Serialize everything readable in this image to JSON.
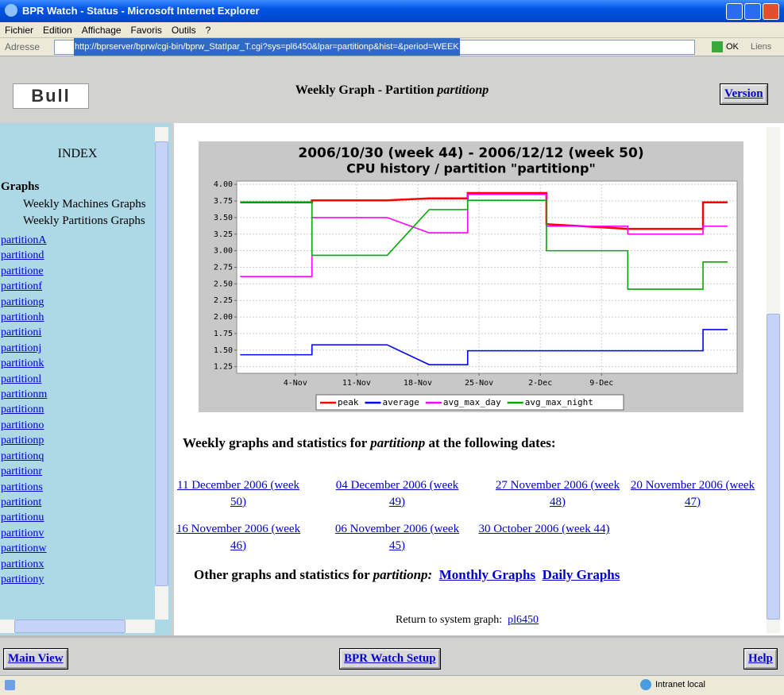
{
  "window": {
    "title": "BPR Watch - Status - Microsoft Internet Explorer",
    "menu": [
      "Fichier",
      "Edition",
      "Affichage",
      "Favoris",
      "Outils",
      "?"
    ],
    "address_label": "Adresse",
    "url": "http://bprserver/bprw/cgi-bin/bprw_StatIpar_T.cgi?sys=pl6450&lpar=partitionp&hist=&period=WEEK",
    "go": "OK",
    "links": "Liens"
  },
  "header": {
    "logo": "Bull",
    "title": "Weekly Graph - Partition ",
    "title_em": "partitionp",
    "version": "Version"
  },
  "index": {
    "title": "INDEX",
    "section": "Graphs",
    "items": [
      "Weekly Machines Graphs",
      "Weekly Partitions Graphs"
    ],
    "links": [
      "partitionA",
      "partitiond",
      "partitione",
      "partitionf",
      "partitiong",
      "partitionh",
      "partitioni",
      "partitionj",
      "partitionk",
      "partitionl",
      "partitionm",
      "partitionn",
      "partitiono",
      "partitionp",
      "partitionq",
      "partitionr",
      "partitions",
      "partitiont",
      "partitionu",
      "partitionv",
      "partitionw",
      "partitionx",
      "partitiony"
    ]
  },
  "content": {
    "heading": "Weekly graphs and statistics for ",
    "heading_em": "partitionp",
    "heading_end": " at the following dates:",
    "dates": [
      "11 December 2006 (week 50)",
      "04 December 2006 (week 49)",
      "27 November 2006 (week 48)",
      "20 November 2006 (week 47)",
      "16 November 2006 (week 46)",
      "06 November 2006 (week 45)",
      "30 October 2006 (week 44)"
    ],
    "other": "Other graphs and statistics for ",
    "other_em": "partitionp:",
    "monthly": "Monthly Graphs",
    "daily": "Daily Graphs",
    "return": "Return to system graph:",
    "system": "pl6450"
  },
  "footer": {
    "main": "Main View",
    "setup": "BPR Watch Setup",
    "help": "Help"
  },
  "status": {
    "zone": "Intranet local"
  },
  "chart_data": {
    "type": "line",
    "title": "2006/10/30 (week 44) - 2006/12/12 (week 50)",
    "subtitle": "CPU history / partition \"partitionp\"",
    "xlim": [
      -2.7,
      54.5
    ],
    "xticks": [
      {
        "value": 4,
        "label": "4-Nov"
      },
      {
        "value": 11,
        "label": "11-Nov"
      },
      {
        "value": 18,
        "label": "18-Nov"
      },
      {
        "value": 25,
        "label": "25-Nov"
      },
      {
        "value": 32,
        "label": "2-Dec"
      },
      {
        "value": 39,
        "label": "9-Dec"
      }
    ],
    "ylim": [
      1.15,
      4.05
    ],
    "yticks": [
      1.25,
      {
        "value": 1.5,
        "label": "1.50"
      },
      1.75,
      {
        "value": 2,
        "label": "2.00"
      },
      2.25,
      {
        "value": 2.5,
        "label": "2.50"
      },
      2.75,
      {
        "value": 3,
        "label": "3.00"
      },
      3.25,
      {
        "value": 3.5,
        "label": "3.50"
      },
      3.75,
      {
        "value": 4,
        "label": "4.00"
      }
    ],
    "grid": true,
    "series": [
      {
        "name": "peak",
        "color": "#ff0000",
        "x": [
          -2.3,
          5.9,
          5.9,
          14.5,
          19.3,
          23.7,
          23.7,
          32.7,
          32.7,
          42.0,
          50.6,
          50.6,
          53.4
        ],
        "values": [
          3.73,
          3.73,
          3.76,
          3.76,
          3.79,
          3.79,
          3.87,
          3.87,
          3.4,
          3.33,
          3.33,
          3.73,
          3.73
        ]
      },
      {
        "name": "average",
        "color": "#0000ff",
        "x": [
          -2.3,
          5.9,
          5.9,
          14.5,
          19.3,
          23.7,
          23.7,
          50.6,
          50.6,
          53.4
        ],
        "values": [
          1.43,
          1.43,
          1.58,
          1.58,
          1.28,
          1.28,
          1.49,
          1.49,
          1.81,
          1.81
        ]
      },
      {
        "name": "avg_max_day",
        "color": "#ff00ff",
        "x": [
          -2.3,
          5.9,
          5.9,
          14.5,
          19.3,
          23.7,
          23.7,
          32.7,
          32.7,
          42.0,
          42.0,
          50.6,
          50.6,
          53.4
        ],
        "values": [
          2.61,
          2.61,
          3.5,
          3.5,
          3.27,
          3.27,
          3.85,
          3.85,
          3.37,
          3.37,
          3.25,
          3.25,
          3.37,
          3.37
        ]
      },
      {
        "name": "avg_max_night",
        "color": "#00aa00",
        "x": [
          -2.3,
          5.9,
          5.9,
          14.5,
          19.3,
          23.7,
          23.7,
          32.7,
          32.7,
          42.0,
          42.0,
          50.6,
          50.6,
          53.4
        ],
        "values": [
          3.73,
          3.73,
          2.93,
          2.93,
          3.62,
          3.62,
          3.76,
          3.76,
          3.0,
          3.0,
          2.42,
          2.42,
          2.83,
          2.83
        ]
      }
    ]
  }
}
